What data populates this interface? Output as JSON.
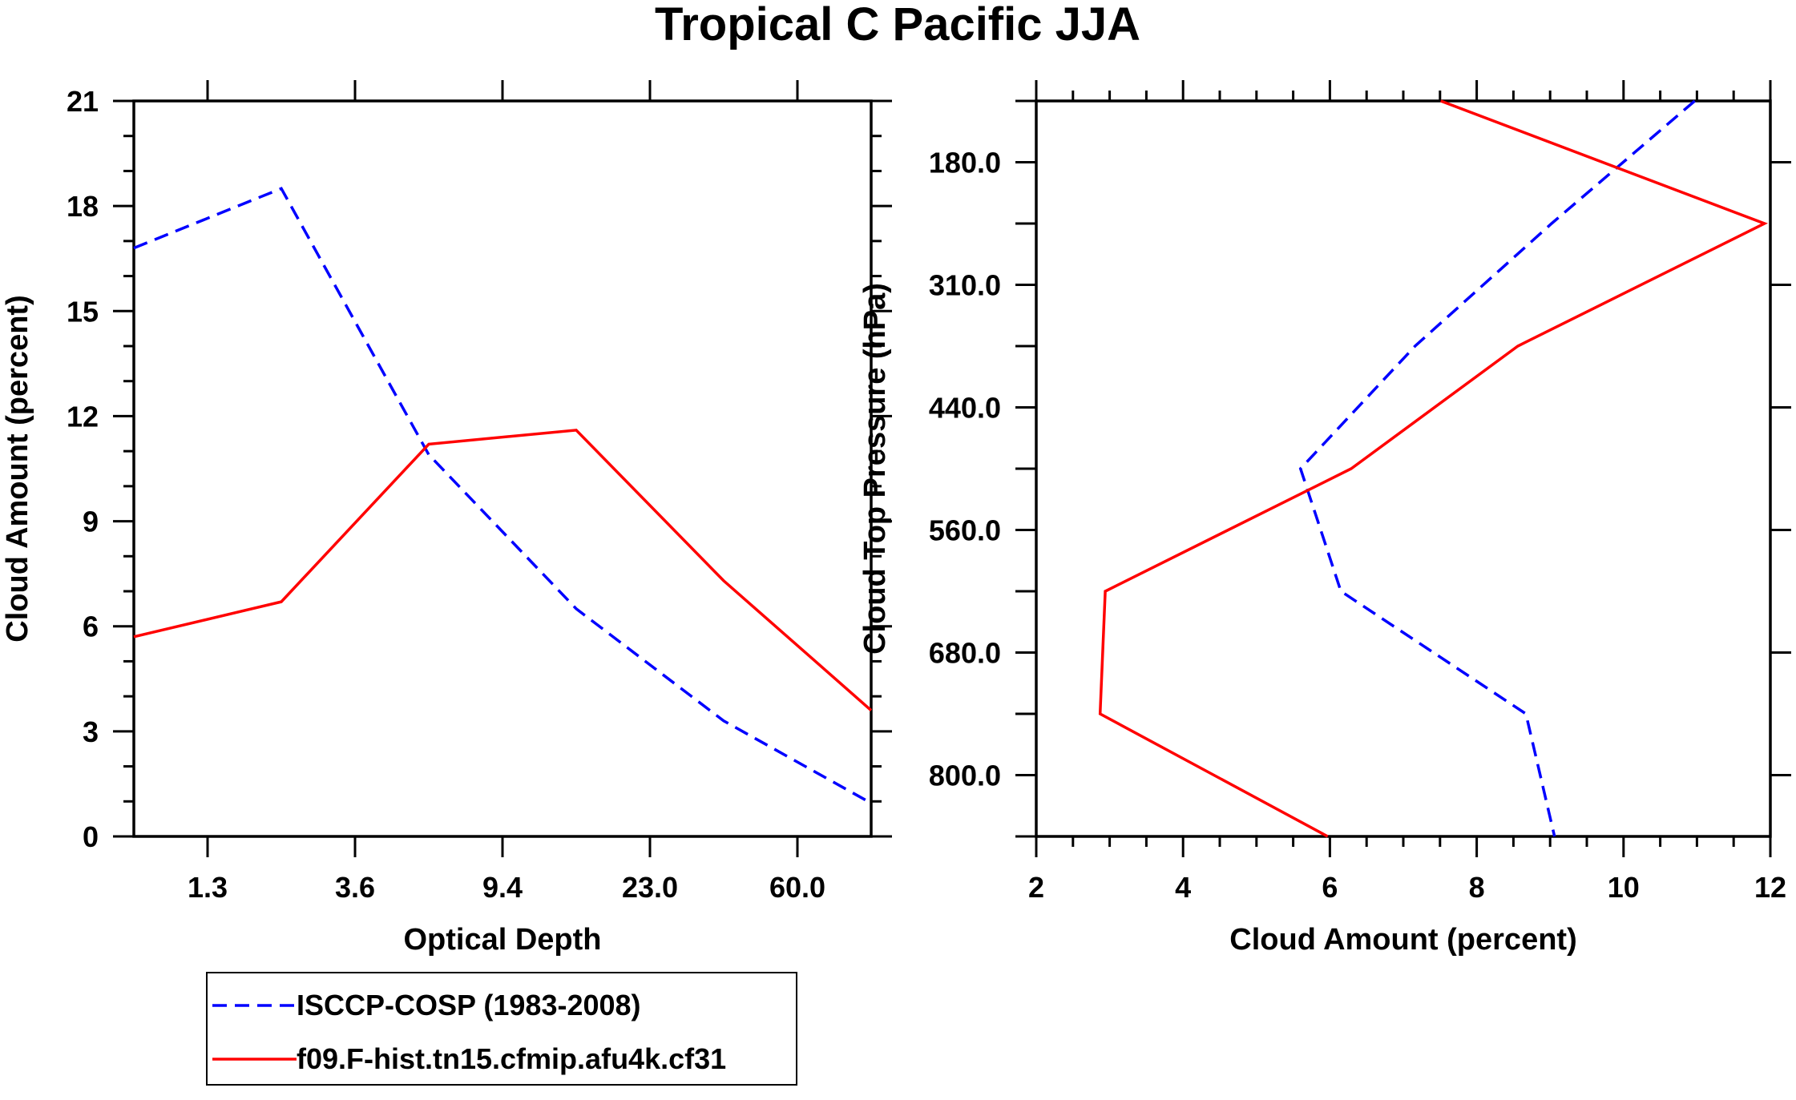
{
  "title": "Tropical C Pacific JJA",
  "colors": {
    "isccp": "#0000ff",
    "model": "#ff0000",
    "axis": "#000000"
  },
  "legend": {
    "entries": [
      {
        "label": "ISCCP-COSP (1983-2008)",
        "style": "dashed",
        "color": "#0000ff"
      },
      {
        "label": "f09.F-hist.tn15.cfmip.afu4k.cf31",
        "style": "solid",
        "color": "#ff0000"
      }
    ]
  },
  "chart_data": [
    {
      "type": "line",
      "xlabel": "Optical Depth",
      "ylabel": "Cloud Amount (percent)",
      "ylim": [
        0,
        21
      ],
      "yticks": [
        "0",
        "3",
        "6",
        "9",
        "12",
        "15",
        "18",
        "21"
      ],
      "xtick_labels": [
        "1.3",
        "3.6",
        "9.4",
        "23.0",
        "60.0"
      ],
      "x_bins": 6,
      "grid": false,
      "series": [
        {
          "name": "ISCCP-COSP (1983-2008)",
          "values": [
            16.8,
            18.5,
            10.9,
            6.5,
            3.3,
            0.95
          ]
        },
        {
          "name": "f09.F-hist.tn15.cfmip.afu4k.cf31",
          "values": [
            5.7,
            6.7,
            11.2,
            11.6,
            7.3,
            3.6
          ]
        }
      ]
    },
    {
      "type": "line",
      "xlabel": "Cloud Amount (percent)",
      "ylabel": "Cloud Top Pressure (hPa)",
      "xlim": [
        2,
        12
      ],
      "xticks": [
        "2",
        "4",
        "6",
        "8",
        "10",
        "12"
      ],
      "ytick_labels": [
        "180.0",
        "310.0",
        "440.0",
        "560.0",
        "680.0",
        "800.0"
      ],
      "y_bins": 7,
      "grid": false,
      "series": [
        {
          "name": "ISCCP-COSP (1983-2008)",
          "values": [
            10.97,
            9.02,
            7.16,
            5.6,
            6.15,
            8.67,
            9.06
          ]
        },
        {
          "name": "f09.F-hist.tn15.cfmip.afu4k.cf31",
          "values": [
            7.51,
            11.92,
            8.56,
            6.29,
            2.94,
            2.87,
            5.97
          ]
        }
      ]
    }
  ]
}
